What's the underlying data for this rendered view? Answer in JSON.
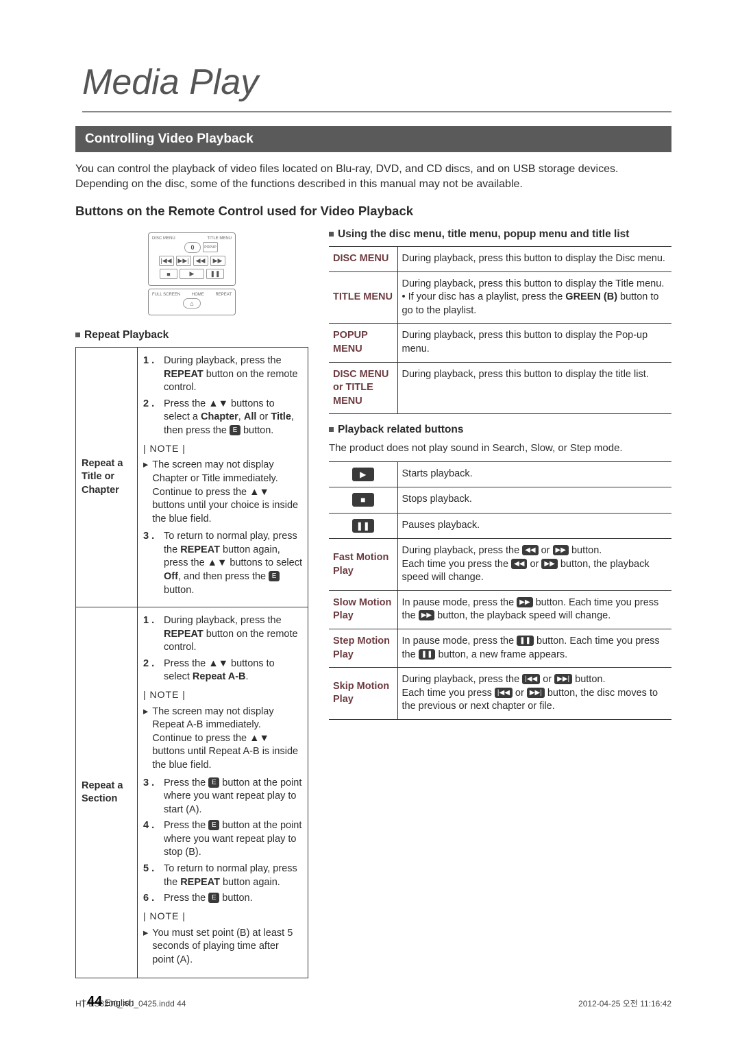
{
  "page": {
    "title": "Media Play",
    "section_banner": "Controlling Video Playback",
    "intro": "You can control the playback of video files located on Blu-ray, DVD, and CD discs, and on USB storage devices. Depending on the disc, some of the functions described in this manual may not be available.",
    "subhead": "Buttons on the Remote Control used for Video Playback",
    "page_number": "44",
    "lang": "English",
    "footer_file": "HT-ES8200_XU_0425.indd   44",
    "footer_date": "2012-04-25   오전 11:16:42"
  },
  "remote": {
    "top_labels": [
      "DISC MENU",
      "TITLE MENU"
    ],
    "zero": "0",
    "popup": "POPUP",
    "row_transport_1": [
      "|◀◀",
      "▶▶|",
      "◀◀",
      "▶▶"
    ],
    "row_transport_2": [
      "■",
      "▶",
      "❚❚"
    ],
    "bottom_labels": [
      "FULL SCREEN",
      "HOME",
      "REPEAT"
    ],
    "home_icon": "⌂"
  },
  "left": {
    "heading": "Repeat Playback",
    "rows": [
      {
        "label": "Repeat a Title or Chapter",
        "steps1": [
          {
            "n": "1 .",
            "t": "During playback, press the <b>REPEAT</b> button on the remote control."
          },
          {
            "n": "2 .",
            "t": "Press the ▲▼ buttons to select a <b>Chapter</b>, <b>All</b> or <b>Title</b>, then press the <span class='inline-icon'>E</span> button."
          }
        ],
        "note_label1": "NOTE",
        "note1": "The screen may not display Chapter or Title immediately. Continue to press the ▲▼ buttons until your choice is inside the blue field.",
        "steps1b": [
          {
            "n": "3 .",
            "t": "To return to normal play, press the <b>REPEAT</b> button again, press the ▲▼ buttons to select <b>Off</b>, and then press the <span class='inline-icon'>E</span> button."
          }
        ]
      },
      {
        "label": "Repeat a Section",
        "steps2a": [
          {
            "n": "1 .",
            "t": "During playback, press the <b>REPEAT</b> button on the remote control."
          },
          {
            "n": "2 .",
            "t": "Press the ▲▼ buttons to select <b>Repeat A-B</b>."
          }
        ],
        "note_label2a": "NOTE",
        "note2a": "The screen may not display Repeat A-B immediately. Continue to press the ▲▼ buttons until  Repeat A-B  is inside the blue field.",
        "steps2b": [
          {
            "n": "3 .",
            "t": "Press the <span class='inline-icon'>E</span> button at the point where you want repeat play to start (A)."
          },
          {
            "n": "4 .",
            "t": "Press the <span class='inline-icon'>E</span> button at the point where you want repeat play to stop (B)."
          },
          {
            "n": "5 .",
            "t": "To return to normal play, press the <b>REPEAT</b> button again."
          },
          {
            "n": "6 .",
            "t": "Press the <span class='inline-icon'>E</span> button."
          }
        ],
        "note_label2b": "NOTE",
        "note2b": "You must set point (B) at least 5 seconds of playing time after point (A)."
      }
    ]
  },
  "right": {
    "heading1": "Using the disc menu, title menu, popup menu and title list",
    "menu_rows": [
      {
        "h": "DISC MENU",
        "d": "During playback, press this button to display the Disc menu."
      },
      {
        "h": "TITLE MENU",
        "d": "During playback, press this button to display the Title menu.<br>• If your disc has a playlist, press the <b>GREEN (B)</b> button to go to the playlist."
      },
      {
        "h": "POPUP MENU",
        "d": "During playback, press this button to display the Pop-up menu."
      },
      {
        "h": "DISC MENU or TITLE MENU",
        "d": "During playback, press this button to display the title list."
      }
    ],
    "heading2": "Playback related buttons",
    "note": "The product does not play sound in Search, Slow, or Step mode.",
    "pb_rows": [
      {
        "icon": "▶",
        "icon_only": true,
        "d": "Starts playback."
      },
      {
        "icon": "■",
        "icon_only": true,
        "d": "Stops playback."
      },
      {
        "icon": "❚❚",
        "icon_only": true,
        "d": "Pauses playback."
      },
      {
        "label": "Fast Motion Play",
        "d": "During playback, press the <span class='inline-icon'>◀◀</span> or <span class='inline-icon'>▶▶</span> button.<br>Each time you press the <span class='inline-icon'>◀◀</span> or <span class='inline-icon'>▶▶</span> button, the playback speed will change."
      },
      {
        "label": "Slow Motion Play",
        "d": "In pause mode, press the <span class='inline-icon'>▶▶</span> button. Each time you press the <span class='inline-icon'>▶▶</span> button, the playback speed will change."
      },
      {
        "label": "Step Motion Play",
        "d": "In pause mode, press the <span class='inline-icon'>❚❚</span> button. Each time you press the <span class='inline-icon'>❚❚</span> button, a new frame appears."
      },
      {
        "label": "Skip Motion Play",
        "d": "During playback, press the <span class='inline-icon'>|◀◀</span> or <span class='inline-icon'>▶▶|</span> button.<br>Each time you press <span class='inline-icon'>|◀◀</span> or <span class='inline-icon'>▶▶|</span> button, the disc moves to the previous or next chapter or file."
      }
    ]
  }
}
